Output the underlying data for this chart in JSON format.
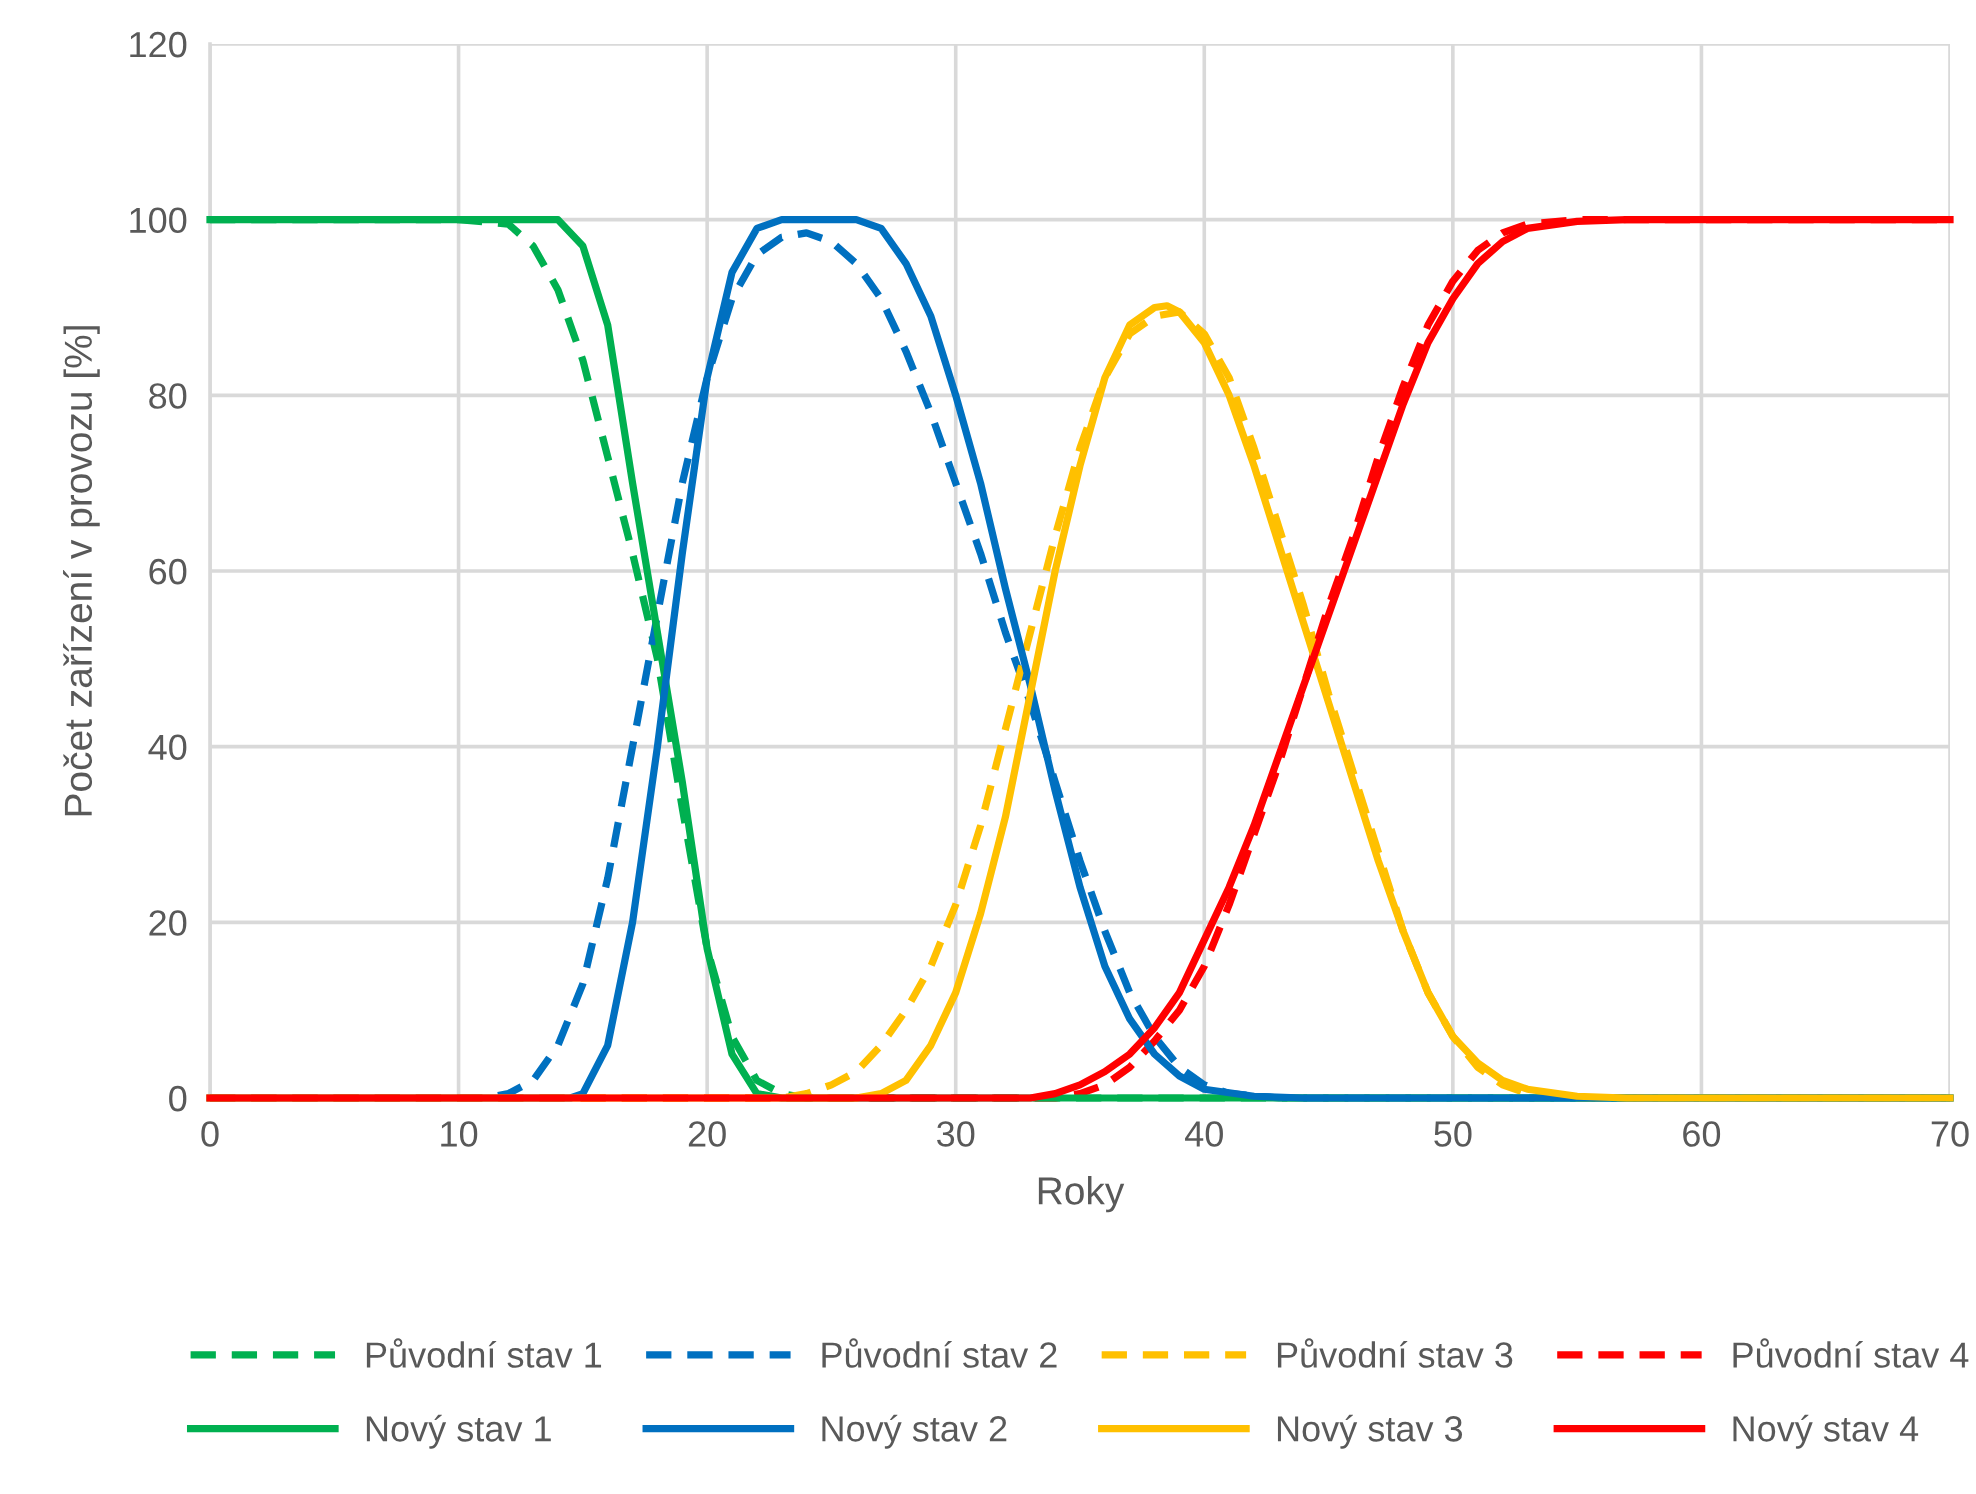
{
  "chart_data": {
    "type": "line",
    "xlabel": "Roky",
    "ylabel": "Počet zařízení v provozu [%]",
    "xlim": [
      0,
      70
    ],
    "xticks": [
      0,
      10,
      20,
      30,
      40,
      50,
      60,
      70
    ],
    "ylim": [
      0,
      120
    ],
    "yticks": [
      0,
      20,
      40,
      60,
      80,
      100,
      120
    ],
    "grid": true,
    "legend": "bottom",
    "marker": "none",
    "series": [
      {
        "name": "Původní stav 1",
        "color": "#00b050",
        "line_style": "dashed",
        "x": [
          0,
          10,
          12,
          13,
          14,
          15,
          16,
          17,
          18,
          19,
          20,
          21,
          22,
          23,
          24,
          70
        ],
        "values": [
          100,
          100,
          99.5,
          97,
          92,
          84,
          73,
          62,
          50,
          33,
          17,
          7,
          2,
          0.5,
          0,
          0
        ]
      },
      {
        "name": "Původní stav 2",
        "color": "#0070c0",
        "line_style": "dashed",
        "x": [
          0,
          11,
          12,
          13,
          14,
          15,
          16,
          17,
          18,
          19,
          20,
          21,
          22,
          23,
          24,
          25,
          26,
          27,
          28,
          29,
          30,
          31,
          32,
          33,
          34,
          35,
          36,
          37,
          38,
          39,
          40,
          41,
          43,
          70
        ],
        "values": [
          0,
          0,
          0.5,
          2,
          6,
          13,
          25,
          40,
          55,
          70,
          82,
          91,
          96,
          98,
          98.5,
          97.5,
          95,
          91,
          85,
          78,
          70,
          62,
          53,
          45,
          36,
          27,
          19,
          12,
          7,
          3.5,
          1.5,
          0.5,
          0,
          0
        ]
      },
      {
        "name": "Původní stav 3",
        "color": "#ffc000",
        "line_style": "dashed",
        "x": [
          0,
          23,
          24,
          25,
          26,
          27,
          28,
          29,
          30,
          31,
          32,
          33,
          34,
          35,
          36,
          37,
          38,
          39,
          40,
          41,
          42,
          43,
          44,
          45,
          46,
          47,
          48,
          49,
          50,
          51,
          52,
          53,
          55,
          70
        ],
        "values": [
          0,
          0,
          0.5,
          1.5,
          3,
          6,
          10,
          15,
          22,
          31,
          42,
          53,
          64,
          74,
          82,
          87,
          89,
          89.5,
          87,
          82,
          74,
          65,
          56,
          46,
          37,
          28,
          19,
          12,
          7,
          3.5,
          1.5,
          0.5,
          0,
          0
        ]
      },
      {
        "name": "Původní stav 4",
        "color": "#ff0000",
        "line_style": "dashed",
        "x": [
          0,
          34,
          35,
          36,
          37,
          38,
          39,
          40,
          41,
          42,
          43,
          44,
          45,
          46,
          47,
          48,
          49,
          50,
          51,
          52,
          53,
          55,
          70
        ],
        "values": [
          0,
          0,
          0.5,
          1.5,
          3.5,
          6.5,
          10,
          15,
          22,
          30,
          38,
          47,
          56,
          64,
          73,
          81,
          88,
          93,
          96.5,
          98.5,
          99.5,
          100,
          100
        ]
      },
      {
        "name": "Nový stav 1",
        "color": "#00b050",
        "line_style": "solid",
        "x": [
          0,
          14,
          15,
          16,
          17,
          18,
          19,
          20,
          21,
          22,
          23,
          70
        ],
        "values": [
          100,
          100,
          97,
          88,
          70,
          53,
          36,
          17,
          5,
          0.5,
          0,
          0
        ]
      },
      {
        "name": "Nový stav 2",
        "color": "#0070c0",
        "line_style": "solid",
        "x": [
          0,
          14.5,
          15,
          16,
          17,
          18,
          19,
          20,
          21,
          22,
          23,
          26,
          27,
          28,
          29,
          30,
          31,
          32,
          33,
          34,
          35,
          36,
          37,
          38,
          39,
          40,
          42,
          44,
          70
        ],
        "values": [
          0,
          0,
          0.5,
          6,
          20,
          40,
          62,
          82,
          94,
          99,
          100,
          100,
          99,
          95,
          89,
          80,
          70,
          58,
          47,
          35,
          24,
          15,
          9,
          5,
          2.5,
          1,
          0.2,
          0,
          0
        ]
      },
      {
        "name": "Nový stav 3",
        "color": "#ffc000",
        "line_style": "solid",
        "x": [
          0,
          26,
          27,
          28,
          29,
          30,
          31,
          32,
          33,
          34,
          35,
          36,
          37,
          38,
          38.5,
          39,
          40,
          41,
          42,
          43,
          44,
          45,
          46,
          47,
          48,
          49,
          50,
          51,
          52,
          53,
          55,
          57,
          70
        ],
        "values": [
          0,
          0,
          0.5,
          2,
          6,
          12,
          21,
          32,
          46,
          60,
          72,
          82,
          88,
          90,
          90.2,
          89.5,
          86,
          80,
          72,
          63,
          54,
          45,
          36,
          27,
          19,
          12,
          7,
          4,
          2,
          1,
          0.2,
          0,
          0
        ]
      },
      {
        "name": "Nový stav 4",
        "color": "#ff0000",
        "line_style": "solid",
        "x": [
          0,
          33,
          34,
          35,
          36,
          37,
          38,
          39,
          40,
          41,
          42,
          43,
          44,
          45,
          46,
          47,
          48,
          49,
          50,
          51,
          52,
          53,
          55,
          57,
          70
        ],
        "values": [
          0,
          0,
          0.5,
          1.5,
          3,
          5,
          8,
          12,
          18,
          24,
          31,
          39,
          47,
          55,
          63,
          71,
          79,
          86,
          91,
          95,
          97.5,
          99,
          99.8,
          100,
          100
        ]
      }
    ]
  }
}
